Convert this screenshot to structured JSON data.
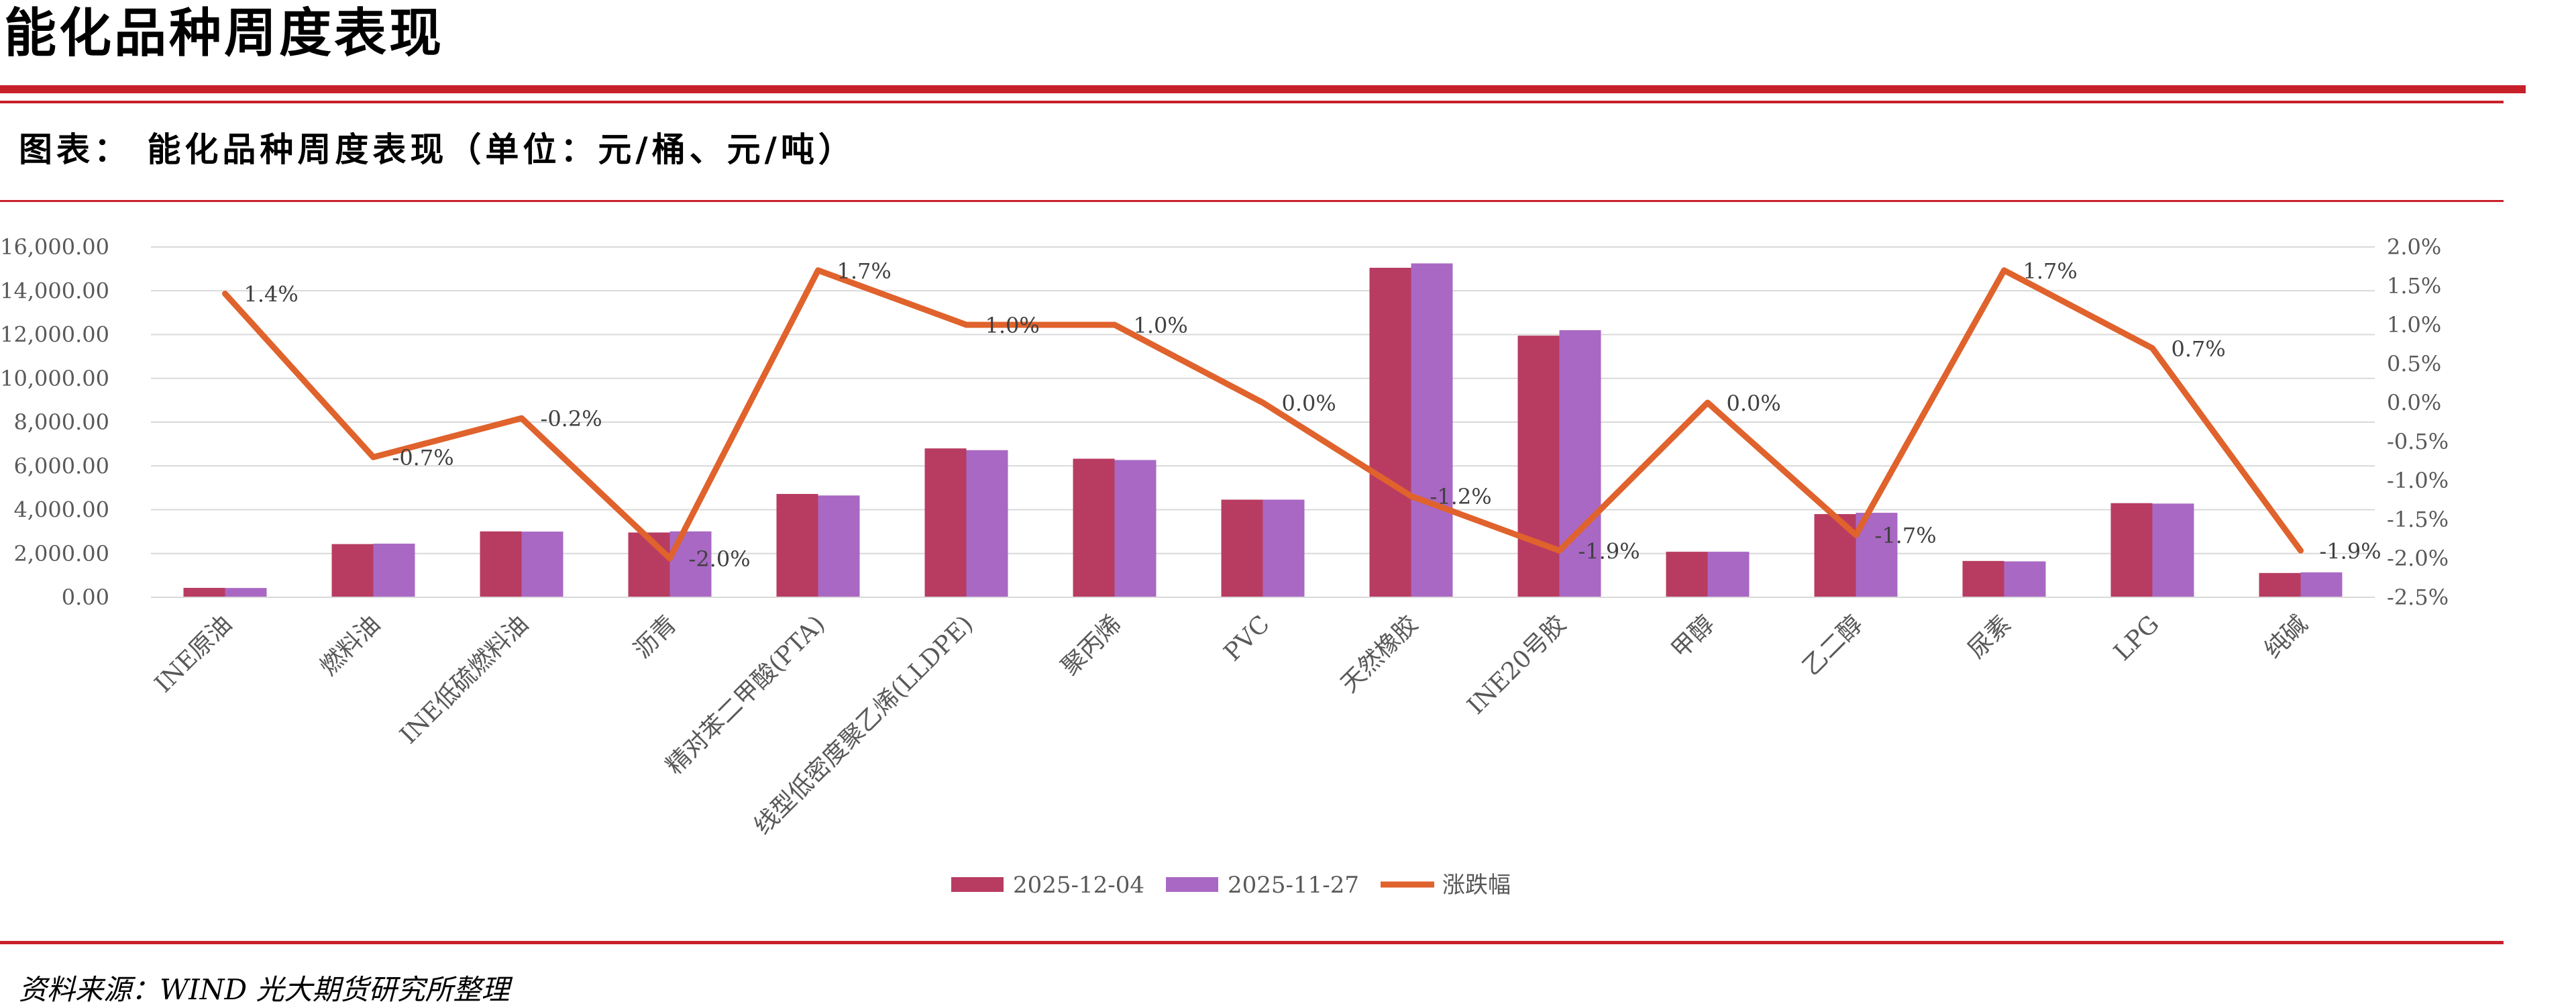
{
  "header": {
    "page_title": "能化品种周度表现",
    "chart_title": "图表： 能化品种周度表现（单位：元/桶、元/吨）",
    "source": "资料来源：WIND 光大期货研究所整理"
  },
  "colors": {
    "accent": "#c8202a",
    "bar_series_1": "#b83c62",
    "bar_series_2": "#a968c3",
    "line_series": "#e0622c",
    "grid": "#d9d9d9",
    "text": "#595959"
  },
  "chart_data": {
    "type": "bar",
    "combo": "bar+line (line on secondary y-axis)",
    "categories": [
      "INE原油",
      "燃料油",
      "INE低硫燃料油",
      "沥青",
      "精对苯二甲酸(PTA)",
      "线型低密度聚乙烯(LLDPE)",
      "聚丙烯",
      "PVC",
      "天然橡胶",
      "INE20号胶",
      "甲醇",
      "乙二醇",
      "尿素",
      "LPG",
      "纯碱"
    ],
    "series": [
      {
        "name": "2025-12-04",
        "axis": "left",
        "kind": "bar",
        "values": [
          430,
          2430,
          3010,
          2960,
          4720,
          6800,
          6330,
          4460,
          15050,
          11950,
          2080,
          3800,
          1660,
          4300,
          1110
        ]
      },
      {
        "name": "2025-11-27",
        "axis": "left",
        "kind": "bar",
        "values": [
          425,
          2450,
          3000,
          3010,
          4650,
          6720,
          6270,
          4460,
          15250,
          12200,
          2080,
          3860,
          1640,
          4280,
          1140
        ]
      },
      {
        "name": "涨跌幅",
        "axis": "right",
        "kind": "line",
        "values": [
          1.4,
          -0.7,
          -0.2,
          -2.0,
          1.7,
          1.0,
          1.0,
          0.0,
          -1.2,
          -1.9,
          0.0,
          -1.7,
          1.7,
          0.7,
          -1.9
        ],
        "labels": [
          "1.4%",
          "-0.7%",
          "-0.2%",
          "-2.0%",
          "1.7%",
          "1.0%",
          "1.0%",
          "0.0%",
          "-1.2%",
          "-1.9%",
          "0.0%",
          "-1.7%",
          "1.7%",
          "0.7%",
          "-1.9%"
        ]
      }
    ],
    "ylim_left": [
      0,
      16000
    ],
    "yticks_left": [
      "0.00",
      "2,000.00",
      "4,000.00",
      "6,000.00",
      "8,000.00",
      "10,000.00",
      "12,000.00",
      "14,000.00",
      "16,000.00"
    ],
    "ylim_right": [
      -2.5,
      2.0
    ],
    "yticks_right": [
      "-2.5%",
      "-2.0%",
      "-1.5%",
      "-1.0%",
      "-0.5%",
      "0.0%",
      "0.5%",
      "1.0%",
      "1.5%",
      "2.0%"
    ],
    "grid": true,
    "legend_position": "bottom"
  }
}
